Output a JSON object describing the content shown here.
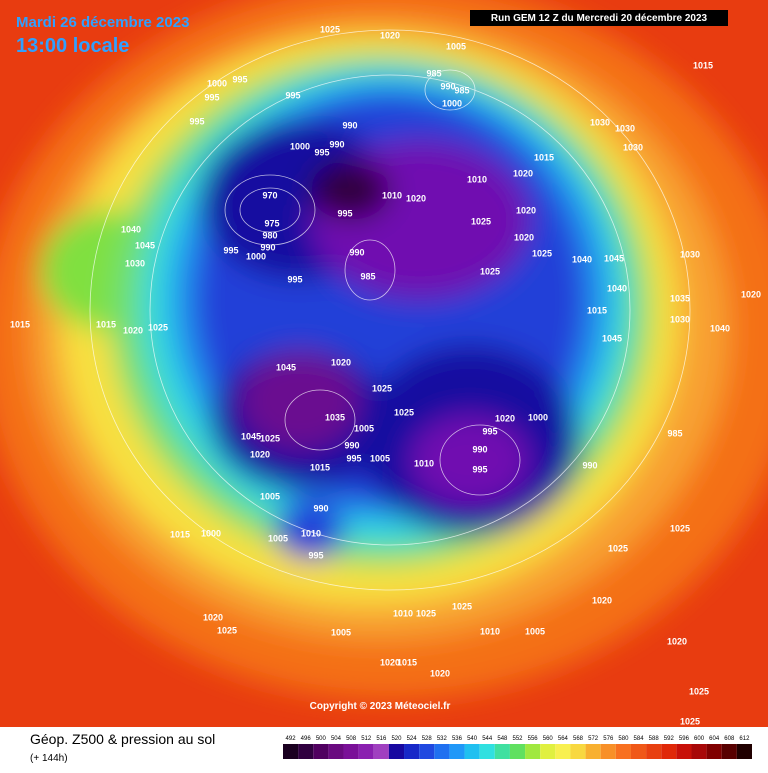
{
  "header": {
    "date": "Mardi 26 décembre 2023",
    "time": "13:00 locale",
    "run": "Run GEM 12 Z du Mercredi 20 décembre 2023"
  },
  "map": {
    "pressure_labels": [
      1025,
      1020,
      1005,
      1015,
      985,
      990,
      985,
      1000,
      1000,
      995,
      995,
      995,
      995,
      990,
      990,
      1000,
      995,
      1030,
      1030,
      1030,
      1015,
      1010,
      1020,
      970,
      1010,
      1020,
      995,
      1025,
      1020,
      1020,
      1025,
      975,
      980,
      995,
      990,
      1000,
      995,
      990,
      985,
      1025,
      1040,
      1045,
      1030,
      1040,
      1045,
      1030,
      1040,
      1035,
      1020,
      1015,
      1015,
      1020,
      1025,
      1015,
      1030,
      1040,
      1045,
      1045,
      1020,
      1025,
      1025,
      1020,
      1000,
      995,
      990,
      995,
      990,
      985,
      1010,
      1035,
      1005,
      1045,
      1025,
      990,
      995,
      1005,
      1015,
      1020,
      1005,
      990,
      1010,
      1005,
      995,
      1015,
      1000,
      1025,
      1025,
      1020,
      1020,
      1025,
      1005,
      1010,
      1025,
      1025,
      1020,
      1020,
      1015,
      1020,
      1025,
      1025,
      1010,
      1005
    ]
  },
  "copyright": "Copyright © 2023 Méteociel.fr",
  "legend": {
    "title": "Géop. Z500 & pression au sol",
    "lead": "(+ 144h)",
    "ticks": [
      492,
      496,
      500,
      504,
      508,
      512,
      516,
      520,
      524,
      528,
      532,
      536,
      540,
      544,
      548,
      552,
      556,
      560,
      564,
      568,
      572,
      576,
      580,
      584,
      588,
      592,
      596,
      600,
      604,
      608,
      612
    ],
    "colors": [
      "#1a0020",
      "#300040",
      "#500060",
      "#6a0a80",
      "#7a1098",
      "#8a20b0",
      "#a040c0",
      "#1808a0",
      "#1828c8",
      "#2048e0",
      "#2070f0",
      "#2098f8",
      "#20c0f0",
      "#30e0e0",
      "#40e0a0",
      "#60e060",
      "#a0e840",
      "#e0f040",
      "#f8f050",
      "#f8d840",
      "#f8b030",
      "#f89028",
      "#f87020",
      "#f05818",
      "#e84010",
      "#e02808",
      "#c81008",
      "#a80808",
      "#800000",
      "#580000",
      "#200000"
    ]
  }
}
